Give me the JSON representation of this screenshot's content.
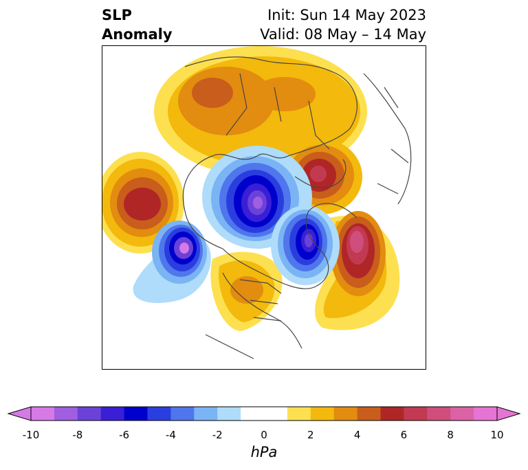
{
  "title": {
    "left_line1": "SLP",
    "left_line2": "Anomaly",
    "right_line1": "Init: Sun 14 May 2023",
    "right_line2": "Valid: 08 May – 14 May"
  },
  "colorbar": {
    "unit": "hPa",
    "tick_labels": [
      "-10",
      "-8",
      "-6",
      "-4",
      "-2",
      "0",
      "2",
      "4",
      "6",
      "8",
      "10"
    ],
    "bins": [
      {
        "from": -10,
        "to": -9,
        "color": "#d67ae6"
      },
      {
        "from": -9,
        "to": -8,
        "color": "#a05ee0"
      },
      {
        "from": -8,
        "to": -7,
        "color": "#6a42da"
      },
      {
        "from": -7,
        "to": -6,
        "color": "#3a1fd6"
      },
      {
        "from": -6,
        "to": -5,
        "color": "#0000cd"
      },
      {
        "from": -5,
        "to": -4,
        "color": "#2a3ee0"
      },
      {
        "from": -4,
        "to": -3,
        "color": "#4f76ec"
      },
      {
        "from": -3,
        "to": -2,
        "color": "#7bb4f4"
      },
      {
        "from": -2,
        "to": -1,
        "color": "#aedcfa"
      },
      {
        "from": -1,
        "to": 1,
        "color": "#ffffff"
      },
      {
        "from": 1,
        "to": 2,
        "color": "#fde050"
      },
      {
        "from": 2,
        "to": 3,
        "color": "#f3b90c"
      },
      {
        "from": 3,
        "to": 4,
        "color": "#e28c10"
      },
      {
        "from": 4,
        "to": 5,
        "color": "#c95d1c"
      },
      {
        "from": 5,
        "to": 6,
        "color": "#b02626"
      },
      {
        "from": 6,
        "to": 7,
        "color": "#c23a52"
      },
      {
        "from": 7,
        "to": 8,
        "color": "#d04e7c"
      },
      {
        "from": 8,
        "to": 9,
        "color": "#dc62a6"
      },
      {
        "from": 9,
        "to": 10,
        "color": "#e674d4"
      }
    ],
    "extend_low_color": "#d67ae6",
    "extend_high_color": "#e674d4"
  },
  "map": {
    "projection": "north-polar stereographic",
    "features": [
      {
        "name": "north-pacific-high",
        "sign": "positive",
        "peak_hpa": 6
      },
      {
        "name": "eurasia-high",
        "sign": "positive",
        "peak_hpa": 5
      },
      {
        "name": "western-siberia-high",
        "sign": "positive",
        "peak_hpa": 7
      },
      {
        "name": "north-atlantic-high",
        "sign": "positive",
        "peak_hpa": 8
      },
      {
        "name": "north-america-high",
        "sign": "positive",
        "peak_hpa": 4
      },
      {
        "name": "arctic-low",
        "sign": "negative",
        "peak_hpa": -9
      },
      {
        "name": "greenland-barents-low",
        "sign": "negative",
        "peak_hpa": -8
      },
      {
        "name": "aleutian-low",
        "sign": "negative",
        "peak_hpa": -9
      }
    ]
  }
}
